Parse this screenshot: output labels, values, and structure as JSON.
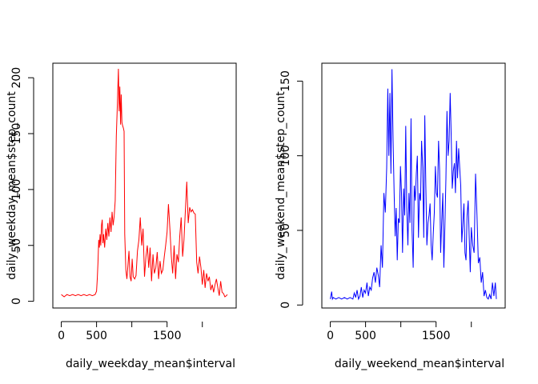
{
  "chart_data": [
    {
      "type": "line",
      "xlabel": "daily_weekday_mean$interval",
      "ylabel": "daily_weekday_mean$step_count",
      "xlim": [
        -120,
        2480
      ],
      "ylim": [
        -6,
        213
      ],
      "xticks": [
        0,
        500,
        1500
      ],
      "xtick_labels": [
        "0",
        "500",
        "1500"
      ],
      "yticks": [
        0,
        50,
        100,
        150,
        200
      ],
      "ytick_labels": [
        "0",
        "50",
        "100",
        "150",
        "200"
      ],
      "color": "#ff0000",
      "x": [
        0,
        40,
        80,
        120,
        160,
        200,
        240,
        280,
        320,
        360,
        400,
        440,
        480,
        500,
        510,
        520,
        530,
        540,
        550,
        560,
        570,
        580,
        590,
        600,
        615,
        630,
        645,
        660,
        675,
        690,
        705,
        720,
        735,
        750,
        765,
        780,
        795,
        810,
        820,
        830,
        840,
        850,
        860,
        870,
        880,
        890,
        900,
        915,
        930,
        945,
        960,
        975,
        990,
        1005,
        1020,
        1040,
        1060,
        1080,
        1100,
        1120,
        1140,
        1160,
        1180,
        1200,
        1220,
        1240,
        1260,
        1280,
        1300,
        1320,
        1340,
        1360,
        1380,
        1400,
        1420,
        1440,
        1460,
        1480,
        1500,
        1520,
        1540,
        1560,
        1580,
        1600,
        1620,
        1640,
        1660,
        1680,
        1700,
        1720,
        1740,
        1760,
        1780,
        1800,
        1820,
        1840,
        1860,
        1880,
        1900,
        1920,
        1940,
        1960,
        1980,
        2000,
        2020,
        2040,
        2060,
        2080,
        2100,
        2120,
        2140,
        2160,
        2180,
        2200,
        2220,
        2240,
        2260,
        2280,
        2300,
        2320,
        2340,
        2355
      ],
      "y": [
        6,
        4,
        6,
        5,
        6,
        5,
        6,
        5,
        6,
        5,
        6,
        5,
        6,
        9,
        20,
        35,
        55,
        48,
        60,
        50,
        68,
        73,
        52,
        60,
        48,
        65,
        55,
        70,
        58,
        75,
        62,
        80,
        68,
        76,
        90,
        148,
        176,
        208,
        170,
        192,
        158,
        185,
        160,
        157,
        155,
        152,
        60,
        28,
        20,
        32,
        45,
        22,
        18,
        38,
        22,
        20,
        23,
        45,
        55,
        75,
        50,
        65,
        22,
        40,
        50,
        30,
        48,
        18,
        42,
        25,
        30,
        44,
        20,
        36,
        25,
        28,
        40,
        50,
        62,
        87,
        65,
        40,
        25,
        50,
        20,
        42,
        35,
        58,
        75,
        40,
        55,
        82,
        107,
        70,
        84,
        80,
        82,
        79,
        78,
        35,
        25,
        40,
        30,
        15,
        28,
        12,
        25,
        18,
        22,
        10,
        15,
        8,
        15,
        20,
        12,
        5,
        18,
        8,
        7,
        4,
        5,
        6
      ]
    },
    {
      "type": "line",
      "xlabel": "daily_weekend_mean$interval",
      "ylabel": "daily_weekend_mean$step_count",
      "xlim": [
        -120,
        2480
      ],
      "ylim": [
        -2,
        162
      ],
      "xticks": [
        0,
        500,
        1500
      ],
      "xtick_labels": [
        "0",
        "500",
        "1500"
      ],
      "yticks": [
        0,
        50,
        100,
        150
      ],
      "ytick_labels": [
        "0",
        "50",
        "100",
        "150"
      ],
      "color": "#0000ff",
      "x": [
        0,
        20,
        30,
        40,
        80,
        120,
        160,
        200,
        240,
        280,
        320,
        340,
        360,
        380,
        400,
        420,
        440,
        460,
        480,
        500,
        520,
        540,
        560,
        580,
        600,
        620,
        640,
        660,
        680,
        700,
        720,
        740,
        760,
        780,
        800,
        815,
        830,
        845,
        860,
        875,
        890,
        905,
        920,
        935,
        950,
        965,
        980,
        995,
        1010,
        1025,
        1040,
        1055,
        1070,
        1085,
        1100,
        1115,
        1130,
        1145,
        1160,
        1175,
        1190,
        1205,
        1220,
        1235,
        1250,
        1265,
        1280,
        1295,
        1310,
        1325,
        1340,
        1355,
        1370,
        1385,
        1400,
        1415,
        1430,
        1445,
        1460,
        1475,
        1490,
        1505,
        1520,
        1535,
        1550,
        1565,
        1580,
        1595,
        1610,
        1625,
        1640,
        1655,
        1670,
        1685,
        1700,
        1715,
        1730,
        1745,
        1760,
        1775,
        1790,
        1805,
        1820,
        1835,
        1850,
        1865,
        1880,
        1895,
        1910,
        1925,
        1940,
        1955,
        1970,
        1985,
        2000,
        2020,
        2040,
        2060,
        2080,
        2100,
        2120,
        2140,
        2160,
        2180,
        2200,
        2220,
        2240,
        2260,
        2280,
        2300,
        2320,
        2340,
        2355
      ],
      "y": [
        4,
        9,
        4,
        5,
        4,
        5,
        4,
        5,
        4,
        5,
        4,
        8,
        5,
        10,
        4,
        6,
        12,
        5,
        10,
        8,
        15,
        6,
        12,
        10,
        18,
        22,
        15,
        25,
        20,
        12,
        40,
        25,
        75,
        62,
        92,
        145,
        100,
        142,
        88,
        158,
        110,
        75,
        46,
        65,
        30,
        58,
        55,
        93,
        75,
        35,
        78,
        60,
        120,
        65,
        40,
        75,
        55,
        125,
        50,
        25,
        80,
        70,
        88,
        100,
        45,
        75,
        70,
        110,
        92,
        45,
        127,
        80,
        40,
        55,
        60,
        68,
        40,
        30,
        48,
        62,
        93,
        75,
        72,
        110,
        90,
        35,
        55,
        75,
        25,
        53,
        85,
        130,
        100,
        110,
        142,
        113,
        78,
        90,
        95,
        75,
        110,
        85,
        105,
        92,
        80,
        42,
        55,
        68,
        35,
        30,
        60,
        70,
        45,
        22,
        52,
        40,
        35,
        88,
        60,
        28,
        32,
        15,
        22,
        6,
        10,
        5,
        4,
        7,
        4,
        15,
        6,
        15,
        4
      ]
    }
  ]
}
